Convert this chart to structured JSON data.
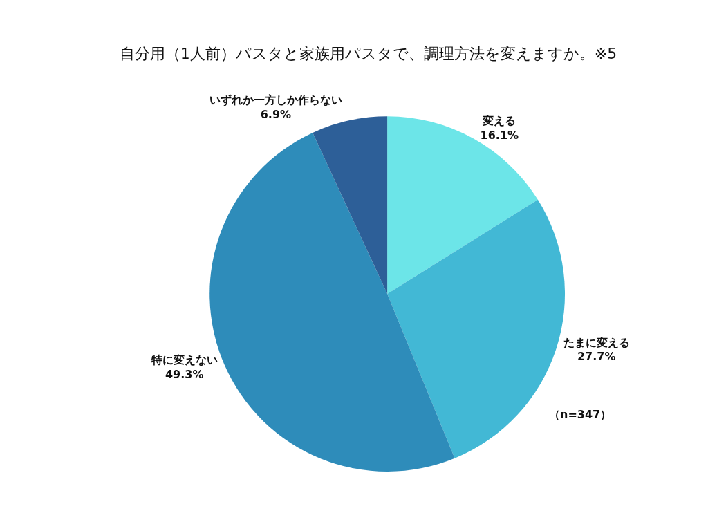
{
  "chart_data": {
    "type": "pie",
    "title": "自分用（1人前）パスタと家族用パスタで、調理方法を変えますか。※5",
    "categories": [
      "変える",
      "たまに変える",
      "特に変えない",
      "いずれか一方しか作らない"
    ],
    "values": [
      16.1,
      27.7,
      49.3,
      6.9
    ],
    "value_labels": [
      "16.1%",
      "27.7%",
      "49.3%",
      "6.9%"
    ],
    "colors": [
      "#6ce5e8",
      "#42b8d5",
      "#2e8cba",
      "#2d5f98"
    ],
    "annotations": [
      "（n=347）"
    ],
    "legend": false
  }
}
